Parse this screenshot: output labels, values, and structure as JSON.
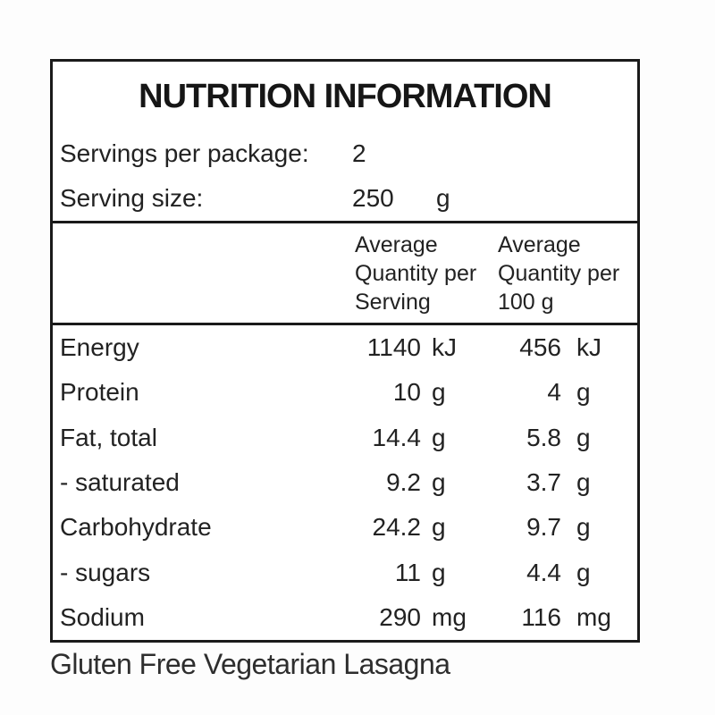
{
  "title": "NUTRITION INFORMATION",
  "meta": {
    "servings_label": "Servings per package:",
    "servings_value": "2",
    "serving_size_label": "Serving size:",
    "serving_size_value": "250",
    "serving_size_unit": "g"
  },
  "columns": {
    "per_serving": [
      "Average",
      "Quantity per",
      "Serving"
    ],
    "per_100g": [
      "Average",
      "Quantity per",
      "100 g"
    ]
  },
  "rows": [
    {
      "label": "Energy",
      "per_serving": "1140",
      "per_serving_unit": "kJ",
      "per_100g": "456",
      "per_100g_unit": "kJ"
    },
    {
      "label": "Protein",
      "per_serving": "10",
      "per_serving_unit": "g",
      "per_100g": "4",
      "per_100g_unit": "g"
    },
    {
      "label": "Fat, total",
      "per_serving": "14.4",
      "per_serving_unit": "g",
      "per_100g": "5.8",
      "per_100g_unit": "g"
    },
    {
      "label": "- saturated",
      "per_serving": "9.2",
      "per_serving_unit": "g",
      "per_100g": "3.7",
      "per_100g_unit": "g"
    },
    {
      "label": "Carbohydrate",
      "per_serving": "24.2",
      "per_serving_unit": "g",
      "per_100g": "9.7",
      "per_100g_unit": "g"
    },
    {
      "label": "- sugars",
      "per_serving": "11",
      "per_serving_unit": "g",
      "per_100g": "4.4",
      "per_100g_unit": "g"
    },
    {
      "label": "Sodium",
      "per_serving": "290",
      "per_serving_unit": "mg",
      "per_100g": "116",
      "per_100g_unit": "mg"
    }
  ],
  "caption": "Gluten Free Vegetarian Lasagna",
  "colors": {
    "border": "#1a1a1a",
    "text": "#222222",
    "background": "#fdfdfd",
    "panel_background": "#ffffff"
  }
}
